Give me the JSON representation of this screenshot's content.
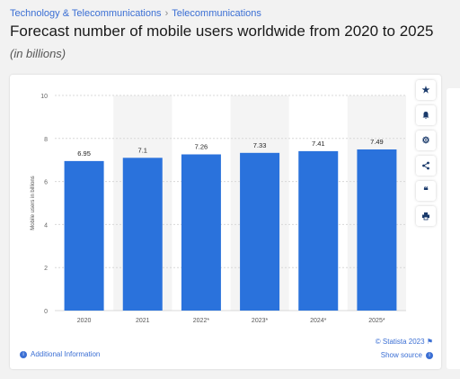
{
  "breadcrumb": {
    "items": [
      "Technology & Telecommunications",
      "Telecommunications"
    ],
    "separator": "›"
  },
  "header": {
    "title": "Forecast number of mobile users worldwide from 2020 to 2025",
    "subtitle": "(in billions)"
  },
  "tools": {
    "icons": [
      "star-icon",
      "bell-icon",
      "gear-icon",
      "share-icon",
      "quote-icon",
      "print-icon"
    ]
  },
  "footer": {
    "additional_info": "Additional Information",
    "credit": "© Statista 2023",
    "show_source": "Show source"
  },
  "colors": {
    "bar": "#2a72dc",
    "accent": "#3b6fd4",
    "band": "#f4f4f4"
  },
  "chart_data": {
    "type": "bar",
    "categories": [
      "2020",
      "2021",
      "2022*",
      "2023*",
      "2024*",
      "2025*"
    ],
    "values": [
      6.95,
      7.1,
      7.26,
      7.33,
      7.41,
      7.49
    ],
    "value_labels": [
      "6.95",
      "7.1",
      "7.26",
      "7.33",
      "7.41",
      "7.49"
    ],
    "title": "Forecast number of mobile users worldwide from 2020 to 2025",
    "xlabel": "",
    "ylabel": "Mobile users in billions",
    "ylim": [
      0,
      10
    ],
    "yticks": [
      0,
      2,
      4,
      6,
      8,
      10
    ],
    "grid": true
  }
}
